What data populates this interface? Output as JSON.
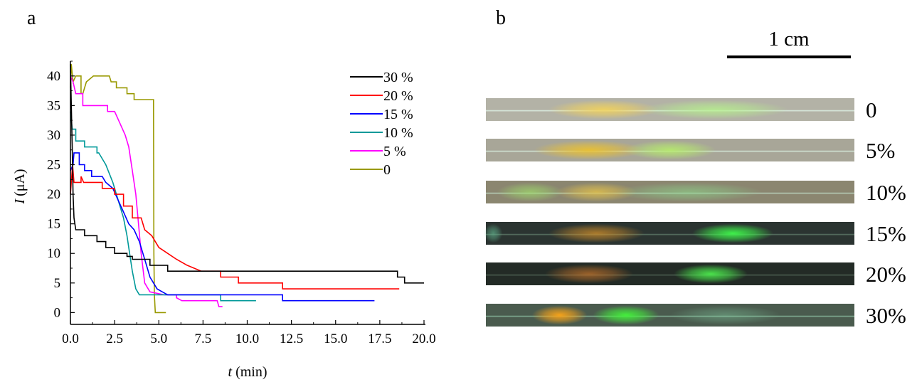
{
  "panels": {
    "a_label": "a",
    "b_label": "b"
  },
  "chart_data": {
    "type": "line",
    "xlabel": {
      "symbol": "t",
      "unit": "(min)"
    },
    "ylabel": {
      "symbol": "I",
      "unit": "(μA)"
    },
    "xlim": [
      0,
      20
    ],
    "ylim": [
      -2,
      42.5
    ],
    "xticks": [
      "0.0",
      "2.5",
      "5.0",
      "7.5",
      "10.0",
      "12.5",
      "15.0",
      "17.5",
      "20.0"
    ],
    "yticks": [
      "0",
      "5",
      "10",
      "15",
      "20",
      "25",
      "30",
      "35",
      "40"
    ],
    "grid": false,
    "legend_position": "top-right",
    "series": [
      {
        "name": "30 %",
        "color": "#000000",
        "points": [
          [
            0,
            42
          ],
          [
            0.1,
            28
          ],
          [
            0.15,
            20
          ],
          [
            0.2,
            16
          ],
          [
            0.3,
            14
          ],
          [
            0.8,
            14
          ],
          [
            0.8,
            13
          ],
          [
            1.5,
            13
          ],
          [
            1.5,
            12
          ],
          [
            2.0,
            12
          ],
          [
            2.0,
            11
          ],
          [
            2.5,
            11
          ],
          [
            2.5,
            10
          ],
          [
            3.2,
            10
          ],
          [
            3.2,
            9.5
          ],
          [
            3.5,
            9.5
          ],
          [
            3.5,
            9
          ],
          [
            4.5,
            9
          ],
          [
            4.5,
            8
          ],
          [
            5.5,
            8
          ],
          [
            5.5,
            7
          ],
          [
            7.5,
            7
          ],
          [
            18.5,
            7
          ],
          [
            18.5,
            6
          ],
          [
            18.9,
            6
          ],
          [
            18.9,
            5
          ],
          [
            20,
            5
          ]
        ]
      },
      {
        "name": "20 %",
        "color": "#ff0000",
        "points": [
          [
            0,
            20
          ],
          [
            0.12,
            25
          ],
          [
            0.2,
            22
          ],
          [
            0.6,
            22
          ],
          [
            0.6,
            23
          ],
          [
            0.75,
            22
          ],
          [
            1.5,
            22
          ],
          [
            1.8,
            22
          ],
          [
            1.8,
            21
          ],
          [
            2.5,
            21
          ],
          [
            2.5,
            20
          ],
          [
            3.0,
            20
          ],
          [
            3.0,
            18
          ],
          [
            3.5,
            18
          ],
          [
            3.5,
            16
          ],
          [
            4.0,
            16
          ],
          [
            4.2,
            14
          ],
          [
            4.6,
            13
          ],
          [
            4.8,
            12
          ],
          [
            5.0,
            11
          ],
          [
            5.5,
            10
          ],
          [
            6.0,
            9
          ],
          [
            6.6,
            8
          ],
          [
            7.4,
            7
          ],
          [
            8.5,
            7
          ],
          [
            8.5,
            6
          ],
          [
            9.5,
            6
          ],
          [
            9.5,
            5
          ],
          [
            12,
            5
          ],
          [
            12,
            4
          ],
          [
            18.6,
            4
          ]
        ]
      },
      {
        "name": "15 %",
        "color": "#0000ff",
        "points": [
          [
            0,
            24
          ],
          [
            0.15,
            25
          ],
          [
            0.2,
            27
          ],
          [
            0.5,
            27
          ],
          [
            0.5,
            25
          ],
          [
            0.8,
            25
          ],
          [
            0.8,
            24
          ],
          [
            1.2,
            24
          ],
          [
            1.2,
            23
          ],
          [
            1.8,
            23
          ],
          [
            2.0,
            22
          ],
          [
            2.4,
            21
          ],
          [
            2.7,
            19
          ],
          [
            3.0,
            17
          ],
          [
            3.3,
            15
          ],
          [
            3.6,
            14
          ],
          [
            3.9,
            12
          ],
          [
            4.1,
            10
          ],
          [
            4.3,
            8
          ],
          [
            4.5,
            6
          ],
          [
            4.7,
            5
          ],
          [
            4.9,
            4
          ],
          [
            5.2,
            3.5
          ],
          [
            5.5,
            3
          ],
          [
            9.5,
            3
          ],
          [
            11.5,
            3
          ],
          [
            12.0,
            3
          ],
          [
            12.0,
            2
          ],
          [
            17.2,
            2
          ]
        ]
      },
      {
        "name": "10 %",
        "color": "#009999",
        "points": [
          [
            0,
            34
          ],
          [
            0.1,
            31
          ],
          [
            0.3,
            31
          ],
          [
            0.3,
            29
          ],
          [
            0.8,
            29
          ],
          [
            0.8,
            28
          ],
          [
            1.5,
            28
          ],
          [
            1.5,
            27
          ],
          [
            1.6,
            27
          ],
          [
            2.0,
            25
          ],
          [
            2.4,
            22
          ],
          [
            2.7,
            19
          ],
          [
            3.0,
            16
          ],
          [
            3.2,
            13
          ],
          [
            3.35,
            10
          ],
          [
            3.5,
            7
          ],
          [
            3.7,
            4
          ],
          [
            3.9,
            3
          ],
          [
            8.5,
            3
          ],
          [
            8.5,
            2
          ],
          [
            10.5,
            2
          ]
        ]
      },
      {
        "name": "5 %",
        "color": "#ff00ff",
        "points": [
          [
            0,
            40
          ],
          [
            0.15,
            39
          ],
          [
            0.3,
            37
          ],
          [
            0.7,
            37
          ],
          [
            0.7,
            35
          ],
          [
            1.5,
            35
          ],
          [
            2.1,
            35
          ],
          [
            2.1,
            34
          ],
          [
            2.5,
            34
          ],
          [
            2.8,
            32
          ],
          [
            3.1,
            30
          ],
          [
            3.3,
            28
          ],
          [
            3.5,
            24
          ],
          [
            3.7,
            20
          ],
          [
            3.85,
            15
          ],
          [
            4.0,
            10
          ],
          [
            4.2,
            5
          ],
          [
            4.5,
            3.5
          ],
          [
            5.3,
            3
          ],
          [
            6.0,
            3
          ],
          [
            6.0,
            2.5
          ],
          [
            6.3,
            2
          ],
          [
            8.3,
            2
          ],
          [
            8.4,
            1
          ],
          [
            8.6,
            1
          ]
        ]
      },
      {
        "name": "0",
        "color": "#999900",
        "points": [
          [
            0,
            38
          ],
          [
            0.05,
            42
          ],
          [
            0.15,
            39
          ],
          [
            0.3,
            40
          ],
          [
            0.6,
            40
          ],
          [
            0.6,
            37
          ],
          [
            0.7,
            37
          ],
          [
            0.9,
            39
          ],
          [
            1.3,
            40
          ],
          [
            2.2,
            40
          ],
          [
            2.3,
            39
          ],
          [
            2.6,
            39
          ],
          [
            2.6,
            38
          ],
          [
            3.2,
            38
          ],
          [
            3.2,
            37
          ],
          [
            3.6,
            37
          ],
          [
            3.6,
            36
          ],
          [
            4.7,
            36
          ],
          [
            4.72,
            10
          ],
          [
            4.75,
            3
          ],
          [
            4.8,
            0
          ],
          [
            5.4,
            0
          ]
        ]
      }
    ]
  },
  "image_panel": {
    "scale_bar_label": "1 cm",
    "strips": [
      {
        "label": "0",
        "background": "#b3b2a6",
        "line": "#dcefe4",
        "glows": [
          {
            "center": 0.32,
            "width": 0.3,
            "color": "#f2d25a",
            "intensity": 0.9
          },
          {
            "center": 0.62,
            "width": 0.4,
            "color": "#b6f28c",
            "intensity": 0.8
          }
        ]
      },
      {
        "label": "5%",
        "background": "#a8a698",
        "line": "#d4e8da",
        "glows": [
          {
            "center": 0.28,
            "width": 0.3,
            "color": "#e9c032",
            "intensity": 0.95
          },
          {
            "center": 0.5,
            "width": 0.25,
            "color": "#b6ec6c",
            "intensity": 0.9
          }
        ]
      },
      {
        "label": "10%",
        "background": "#8b8670",
        "line": "#b9d2bd",
        "glows": [
          {
            "center": 0.12,
            "width": 0.18,
            "color": "#9fdc6b",
            "intensity": 0.7
          },
          {
            "center": 0.3,
            "width": 0.22,
            "color": "#e4c24a",
            "intensity": 0.8
          },
          {
            "center": 0.55,
            "width": 0.4,
            "color": "#8cd48a",
            "intensity": 0.6
          }
        ]
      },
      {
        "label": "15%",
        "background": "#2b3431",
        "line": "#5c7766",
        "glows": [
          {
            "center": 0.02,
            "width": 0.05,
            "color": "#5faf8a",
            "intensity": 0.7
          },
          {
            "center": 0.3,
            "width": 0.26,
            "color": "#c98a2a",
            "intensity": 0.8
          },
          {
            "center": 0.67,
            "width": 0.22,
            "color": "#3ef04a",
            "intensity": 1.0
          }
        ]
      },
      {
        "label": "20%",
        "background": "#232b26",
        "line": "#4d6154",
        "glows": [
          {
            "center": 0.28,
            "width": 0.24,
            "color": "#c0712a",
            "intensity": 0.75
          },
          {
            "center": 0.61,
            "width": 0.2,
            "color": "#4bea4c",
            "intensity": 0.95
          }
        ]
      },
      {
        "label": "30%",
        "background": "#4a5b4e",
        "line": "#86b59a",
        "glows": [
          {
            "center": 0.2,
            "width": 0.15,
            "color": "#f5a21a",
            "intensity": 1.0
          },
          {
            "center": 0.38,
            "width": 0.18,
            "color": "#44ee3c",
            "intensity": 1.0
          },
          {
            "center": 0.65,
            "width": 0.3,
            "color": "#7ec49a",
            "intensity": 0.45
          }
        ]
      }
    ]
  }
}
